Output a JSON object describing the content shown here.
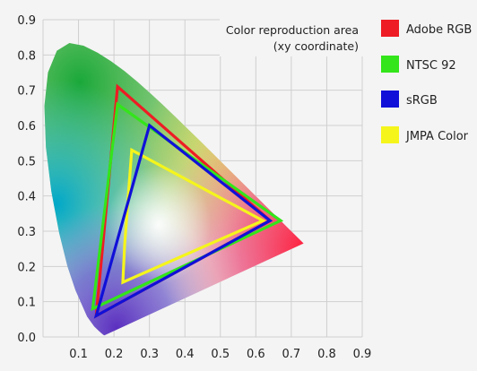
{
  "chart_data": {
    "type": "scatter",
    "title": "Color reproduction area",
    "subtitle": "(xy coordinate)",
    "xlabel": "",
    "ylabel": "",
    "xlim": [
      0,
      0.9
    ],
    "ylim": [
      0,
      0.9
    ],
    "x_ticks": [
      "0.1",
      "0.2",
      "0.3",
      "0.4",
      "0.5",
      "0.6",
      "0.7",
      "0.8",
      "0.9"
    ],
    "y_ticks": [
      "0.0",
      "0.1",
      "0.2",
      "0.3",
      "0.4",
      "0.5",
      "0.6",
      "0.7",
      "0.8",
      "0.9"
    ],
    "grid": true,
    "legend_position": "right",
    "series": [
      {
        "name": "Adobe RGB",
        "color": "#ee1c24",
        "points": [
          [
            0.64,
            0.33
          ],
          [
            0.21,
            0.71
          ],
          [
            0.15,
            0.06
          ]
        ]
      },
      {
        "name": "NTSC 92",
        "color": "#33e51a",
        "points": [
          [
            0.67,
            0.33
          ],
          [
            0.21,
            0.66
          ],
          [
            0.14,
            0.08
          ]
        ]
      },
      {
        "name": "sRGB",
        "color": "#1010d8",
        "points": [
          [
            0.64,
            0.33
          ],
          [
            0.3,
            0.6
          ],
          [
            0.15,
            0.06
          ]
        ]
      },
      {
        "name": "JMPA Color",
        "color": "#f5f51c",
        "points": [
          [
            0.62,
            0.33
          ],
          [
            0.25,
            0.53
          ],
          [
            0.23,
            0.26
          ],
          [
            0.225,
            0.155
          ]
        ]
      }
    ]
  }
}
